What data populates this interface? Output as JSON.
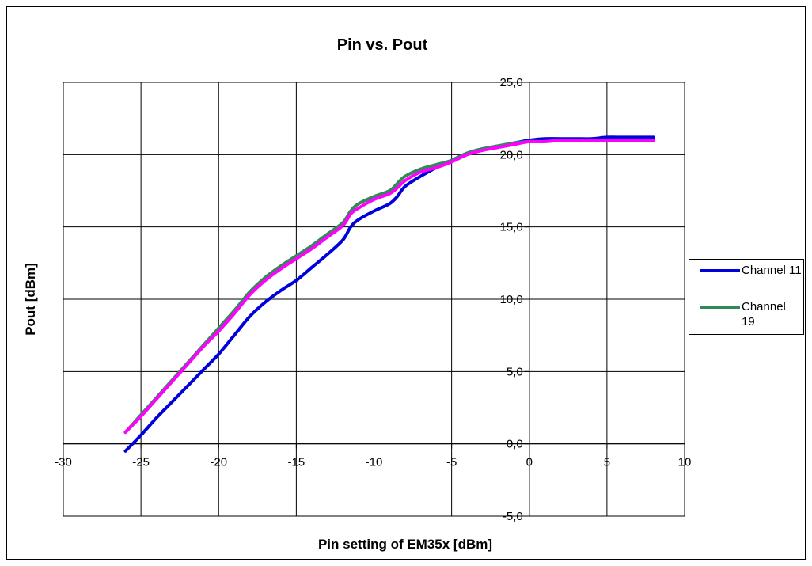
{
  "chart_data": {
    "type": "line",
    "title": "Pin vs. Pout",
    "xlabel": "Pin setting of EM35x [dBm]",
    "ylabel": "Pout [dBm]",
    "xlim": [
      -30,
      10
    ],
    "ylim": [
      -5,
      25
    ],
    "x_ticks": [
      "-30",
      "-25",
      "-20",
      "-15",
      "-10",
      "-5",
      "0",
      "5",
      "10"
    ],
    "y_ticks": [
      "-5,0",
      "0,0",
      "5,0",
      "10,0",
      "15,0",
      "20,0",
      "25,0"
    ],
    "grid": true,
    "legend_position": "right",
    "series": [
      {
        "name": "Channel 11",
        "color": "#0000dd",
        "x": [
          -26,
          -25,
          -24,
          -23,
          -22,
          -21,
          -20,
          -19,
          -18,
          -17,
          -16,
          -15,
          -14,
          -13,
          -12,
          -11.5,
          -11,
          -10,
          -9,
          -8.5,
          -8,
          -7,
          -6,
          -5,
          -4,
          -3,
          -2,
          -1,
          0,
          1,
          2,
          3,
          4,
          5,
          6,
          7,
          8
        ],
        "values": [
          -0.5,
          0.6,
          1.8,
          2.9,
          4.0,
          5.1,
          6.2,
          7.5,
          8.8,
          9.8,
          10.6,
          11.3,
          12.2,
          13.1,
          14.1,
          15.0,
          15.5,
          16.1,
          16.6,
          17.1,
          17.8,
          18.5,
          19.1,
          19.6,
          20.1,
          20.4,
          20.6,
          20.8,
          21.0,
          21.1,
          21.1,
          21.1,
          21.1,
          21.2,
          21.2,
          21.2,
          21.2
        ]
      },
      {
        "name": "Channel 19",
        "color": "#2e8b57",
        "x": [
          -26,
          -25,
          -24,
          -23,
          -22,
          -21,
          -20,
          -19,
          -18,
          -17,
          -16,
          -15,
          -14,
          -13,
          -12,
          -11.5,
          -11,
          -10,
          -9,
          -8.5,
          -8,
          -7,
          -6,
          -5,
          -4,
          -3,
          -2,
          -1,
          0,
          1,
          2,
          3,
          4,
          5,
          6,
          7,
          8
        ],
        "values": [
          0.8,
          2.0,
          3.2,
          4.4,
          5.6,
          6.8,
          8.0,
          9.2,
          10.5,
          11.5,
          12.3,
          13.0,
          13.7,
          14.5,
          15.3,
          16.1,
          16.6,
          17.1,
          17.5,
          18.0,
          18.5,
          19.0,
          19.3,
          19.6,
          20.1,
          20.4,
          20.6,
          20.8,
          20.9,
          20.9,
          21.0,
          21.0,
          21.0,
          21.0,
          21.0,
          21.0,
          21.0
        ]
      },
      {
        "color": "#ff00ff",
        "x": [
          -26,
          -25,
          -24,
          -23,
          -22,
          -21,
          -20,
          -19,
          -18,
          -17,
          -16,
          -15,
          -14,
          -13,
          -12,
          -11.5,
          -11,
          -10,
          -9,
          -8.5,
          -8,
          -7,
          -6,
          -5,
          -4,
          -3,
          -2,
          -1,
          0,
          1,
          2,
          3,
          4,
          5,
          6,
          7,
          8
        ],
        "values": [
          0.8,
          1.9,
          3.1,
          4.3,
          5.5,
          6.7,
          7.8,
          9.0,
          10.3,
          11.3,
          12.1,
          12.8,
          13.5,
          14.3,
          15.1,
          15.9,
          16.3,
          16.9,
          17.3,
          17.7,
          18.2,
          18.8,
          19.1,
          19.5,
          20.0,
          20.3,
          20.5,
          20.7,
          20.9,
          20.9,
          21.0,
          21.0,
          21.0,
          21.0,
          21.0,
          21.0,
          21.0
        ]
      }
    ]
  }
}
